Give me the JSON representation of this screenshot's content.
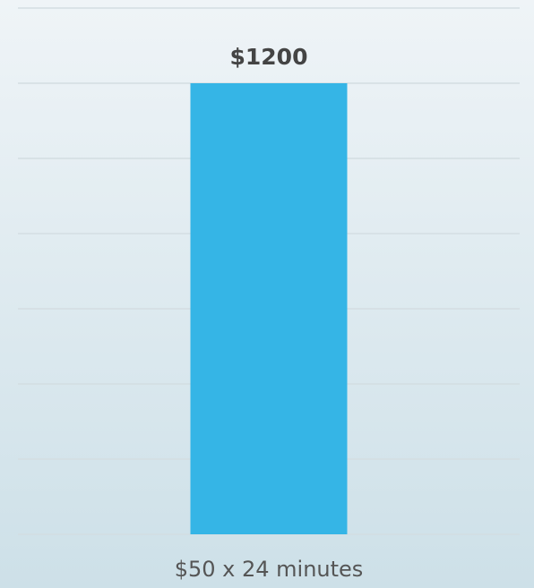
{
  "chart_data": {
    "type": "bar",
    "categories": [
      "$50 x 24 minutes"
    ],
    "values": [
      1200
    ],
    "value_labels": [
      "$1200"
    ],
    "color": "#35b5e6",
    "ylim": [
      0,
      1400
    ],
    "yticks": [
      0,
      200,
      400,
      600,
      800,
      1000,
      1200,
      1400
    ],
    "grid": true
  }
}
